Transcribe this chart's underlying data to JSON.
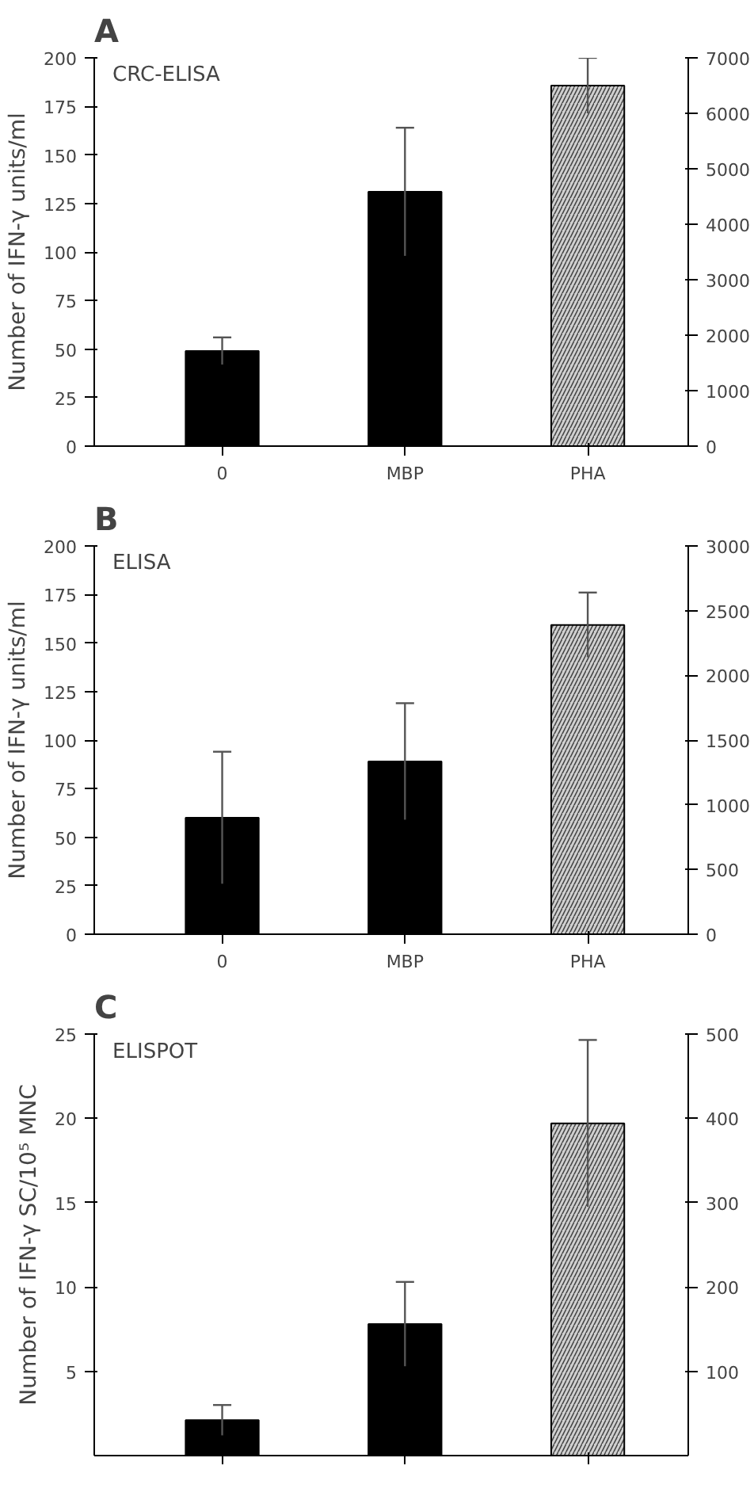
{
  "chart_data": [
    {
      "type": "bar",
      "title": "A",
      "ylabel": "Number of IFN-γ units/ml",
      "annotations": [
        "CRC-ELISA"
      ],
      "categories": [
        "0",
        "MBP",
        "PHA"
      ],
      "ylim": [
        0,
        200
      ],
      "yticks": [
        0,
        25,
        50,
        75,
        100,
        125,
        150,
        175,
        200
      ],
      "y2lim": [
        0,
        7000
      ],
      "y2ticks": [
        0,
        1000,
        2000,
        3000,
        4000,
        5000,
        6000,
        7000
      ],
      "grid": false,
      "series": [
        {
          "color": "#000000",
          "values": [
            49,
            131,
            null
          ],
          "errors": [
            7,
            33,
            null
          ]
        },
        {
          "color": "#d0d0d0",
          "axis": "y2",
          "values": [
            null,
            null,
            6500
          ],
          "errors": [
            null,
            null,
            500
          ]
        }
      ]
    },
    {
      "type": "bar",
      "title": "B",
      "ylabel": "Number of IFN-γ units/ml",
      "annotations": [
        "ELISA"
      ],
      "categories": [
        "0",
        "MBP",
        "PHA"
      ],
      "ylim": [
        0,
        200
      ],
      "yticks": [
        0,
        25,
        50,
        75,
        100,
        125,
        150,
        175,
        200
      ],
      "y2lim": [
        0,
        3000
      ],
      "y2ticks": [
        0,
        500,
        1000,
        1500,
        2000,
        2500,
        3000
      ],
      "grid": false,
      "series": [
        {
          "color": "#000000",
          "values": [
            60,
            89,
            null
          ],
          "errors": [
            34,
            30,
            null
          ]
        },
        {
          "color": "#d0d0d0",
          "axis": "y2",
          "values": [
            null,
            null,
            2390
          ],
          "errors": [
            null,
            null,
            250
          ]
        }
      ]
    },
    {
      "type": "bar",
      "title": "C",
      "ylabel": "Number of IFN-γ SC/10⁵ MNC",
      "annotations": [
        "ELISPOT"
      ],
      "categories": [
        null,
        null,
        null
      ],
      "ylim": [
        0,
        25
      ],
      "yticks": [
        5,
        10,
        15,
        20,
        25
      ],
      "y2lim": [
        0,
        500
      ],
      "y2ticks": [
        100,
        200,
        300,
        400,
        500
      ],
      "grid": false,
      "series": [
        {
          "color": "#000000",
          "values": [
            2.1,
            7.8,
            null
          ],
          "errors": [
            0.9,
            2.5,
            null
          ]
        },
        {
          "color": "#d0d0d0",
          "axis": "y2",
          "values": [
            null,
            null,
            394
          ],
          "errors": [
            null,
            null,
            99
          ]
        }
      ]
    }
  ]
}
